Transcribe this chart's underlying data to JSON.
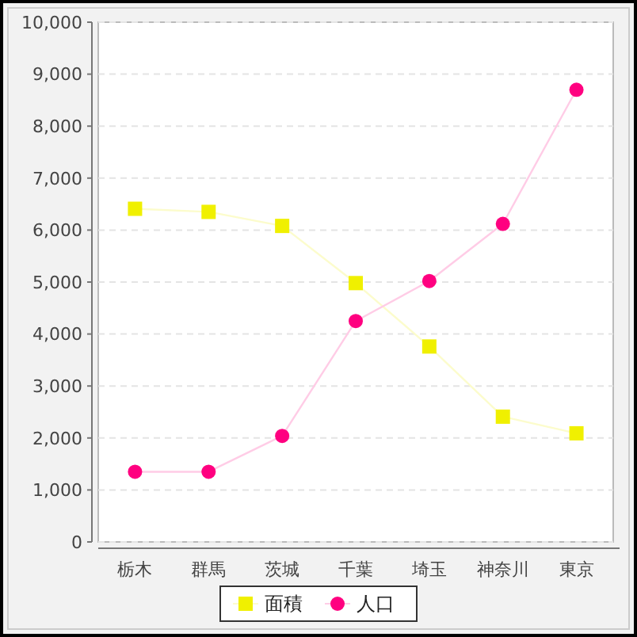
{
  "chart_data": {
    "type": "line",
    "categories": [
      "栃木",
      "群馬",
      "茨城",
      "千葉",
      "埼玉",
      "神奈川",
      "東京"
    ],
    "series": [
      {
        "name": "面積",
        "color": "#f0f000",
        "marker": "square",
        "values": [
          6410,
          6350,
          6080,
          4980,
          3760,
          2410,
          2090
        ]
      },
      {
        "name": "人口",
        "color": "#ff0080",
        "marker": "circle",
        "values": [
          1350,
          1350,
          2040,
          4250,
          5020,
          6120,
          8700
        ]
      }
    ],
    "ylim": [
      0,
      10000
    ],
    "yticks": [
      {
        "value": 0,
        "label": "0"
      },
      {
        "value": 1000,
        "label": "1,000"
      },
      {
        "value": 2000,
        "label": "2,000"
      },
      {
        "value": 3000,
        "label": "3,000"
      },
      {
        "value": 4000,
        "label": "4,000"
      },
      {
        "value": 5000,
        "label": "5,000"
      },
      {
        "value": 6000,
        "label": "6,000"
      },
      {
        "value": 7000,
        "label": "7,000"
      },
      {
        "value": 8000,
        "label": "8,000"
      },
      {
        "value": 9000,
        "label": "9,000"
      },
      {
        "value": 10000,
        "label": "10,000"
      }
    ],
    "grid": "y",
    "legend": "bottom"
  }
}
